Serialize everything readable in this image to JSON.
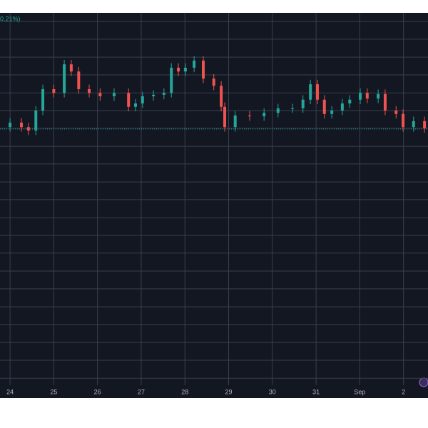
{
  "chart_data": {
    "type": "candlestick",
    "header_text": "0.21%)",
    "x": [
      24.0,
      24.26,
      24.42,
      24.59,
      24.75,
      25.0,
      25.24,
      25.4,
      25.57,
      25.81,
      26.06,
      26.38,
      26.71,
      26.87,
      27.03,
      27.28,
      27.52,
      27.69,
      27.85,
      28.01,
      28.21,
      28.42,
      28.66,
      28.83,
      28.91,
      29.15,
      29.48,
      29.81,
      30.13,
      30.46,
      30.7,
      30.87,
      31.03,
      31.19,
      31.36,
      31.6,
      31.77,
      32.01,
      32.17,
      32.42,
      32.58,
      32.83,
      32.99,
      33.23,
      33.48
    ],
    "open": [
      69.6,
      70.8,
      69.6,
      68.7,
      74.0,
      79.7,
      78.7,
      86.3,
      84.4,
      79.7,
      78.7,
      77.8,
      78.7,
      75.0,
      75.9,
      77.8,
      78.2,
      78.7,
      85.4,
      84.4,
      85.4,
      87.3,
      82.5,
      80.6,
      75.0,
      69.6,
      72.7,
      72.5,
      73.4,
      74.6,
      74.6,
      76.9,
      81.0,
      76.9,
      73.1,
      74.0,
      75.9,
      76.9,
      78.7,
      77.2,
      78.4,
      74.0,
      73.1,
      69.6,
      71.2
    ],
    "high": [
      72.0,
      72.0,
      70.8,
      75.2,
      80.9,
      80.9,
      87.5,
      87.5,
      85.6,
      80.9,
      79.9,
      79.9,
      79.9,
      77.1,
      79.0,
      79.4,
      79.9,
      86.6,
      86.6,
      86.6,
      88.5,
      88.5,
      83.7,
      81.8,
      76.2,
      73.9,
      73.9,
      74.6,
      75.8,
      75.8,
      78.1,
      82.2,
      82.2,
      78.1,
      75.2,
      77.1,
      78.1,
      79.9,
      79.9,
      79.6,
      79.6,
      75.2,
      74.3,
      72.4,
      72.4
    ],
    "low": [
      68.4,
      68.4,
      67.5,
      67.5,
      72.8,
      77.5,
      77.5,
      83.2,
      78.5,
      77.5,
      76.6,
      76.6,
      73.8,
      73.8,
      74.7,
      76.6,
      77.0,
      77.5,
      83.2,
      83.2,
      84.2,
      81.3,
      79.4,
      73.8,
      68.4,
      68.4,
      71.3,
      71.3,
      72.2,
      73.4,
      73.4,
      75.7,
      75.7,
      71.9,
      71.9,
      72.8,
      74.7,
      75.7,
      76.0,
      76.0,
      72.8,
      71.9,
      68.4,
      68.4,
      68.1
    ],
    "close": [
      70.8,
      69.6,
      68.7,
      74.0,
      79.7,
      78.7,
      86.3,
      84.4,
      79.7,
      78.7,
      77.8,
      78.7,
      75.0,
      75.9,
      77.8,
      78.2,
      78.7,
      85.4,
      84.4,
      85.4,
      87.3,
      82.5,
      80.6,
      75.0,
      69.6,
      72.7,
      72.5,
      73.4,
      74.6,
      74.6,
      76.9,
      81.0,
      76.9,
      73.1,
      74.0,
      75.9,
      76.9,
      78.7,
      77.2,
      78.4,
      74.0,
      73.1,
      69.6,
      71.2,
      69.3
    ],
    "up_color": "#26a69a",
    "down_color": "#ef5350",
    "price_line": 69.1,
    "xlim": [
      23.77,
      33.56
    ],
    "xticks": [
      24,
      25,
      26,
      27,
      28,
      29,
      30,
      31,
      {
        "value": 32,
        "label": "Sep"
      },
      {
        "value": 33,
        "label": "2"
      }
    ],
    "ylim": [
      0,
      100
    ],
    "ygrid": [
      2.8,
      7.6,
      12.3,
      17.1,
      21.8,
      26.6,
      31.3,
      36.1,
      40.8,
      45.5,
      50.3,
      55.0,
      59.8,
      64.5,
      69.3,
      74.0,
      78.7,
      83.5,
      88.2,
      93.0,
      97.7
    ]
  }
}
